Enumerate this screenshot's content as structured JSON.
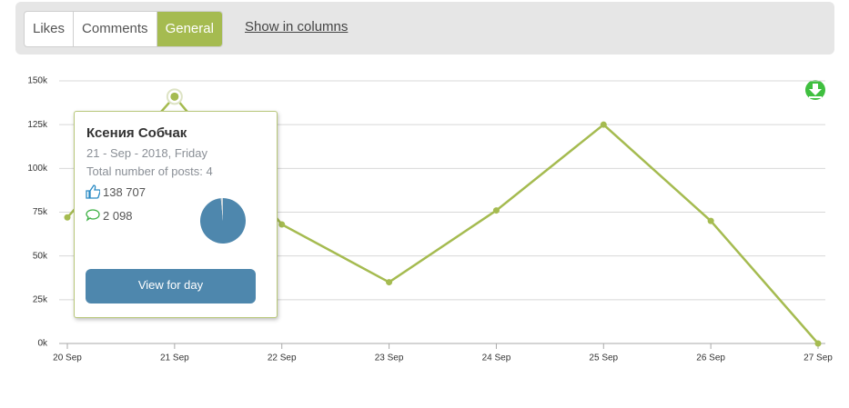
{
  "tabs": [
    "Likes",
    "Comments",
    "General"
  ],
  "active_tab": 2,
  "link": "Show in columns",
  "chart_data": {
    "type": "line",
    "categories": [
      "20 Sep",
      "21 Sep",
      "22 Sep",
      "23 Sep",
      "24 Sep",
      "25 Sep",
      "26 Sep",
      "27 Sep"
    ],
    "series": [
      {
        "name": "General",
        "color": "#a5bb50",
        "values": [
          72000,
          141000,
          68000,
          35000,
          76000,
          125000,
          70000,
          0
        ]
      }
    ],
    "ylim": [
      0,
      150000
    ],
    "yticks": [
      {
        "value": 0,
        "label": "0k"
      },
      {
        "value": 25000,
        "label": "25k"
      },
      {
        "value": 50000,
        "label": "50k"
      },
      {
        "value": 75000,
        "label": "75k"
      },
      {
        "value": 100000,
        "label": "100k"
      },
      {
        "value": 125000,
        "label": "125k"
      },
      {
        "value": 150000,
        "label": "150k"
      }
    ],
    "grid": true,
    "tooltip": {
      "title": "Ксения Собчак",
      "date": "21 - Sep - 2018, Friday",
      "posts": "Total number of posts: 4",
      "values": [
        138707,
        2098
      ],
      "value_labels": [
        "138 707",
        "2 098"
      ],
      "colors": [
        "#4e87ad",
        "#d0d8dc"
      ],
      "button": "View for day"
    }
  }
}
